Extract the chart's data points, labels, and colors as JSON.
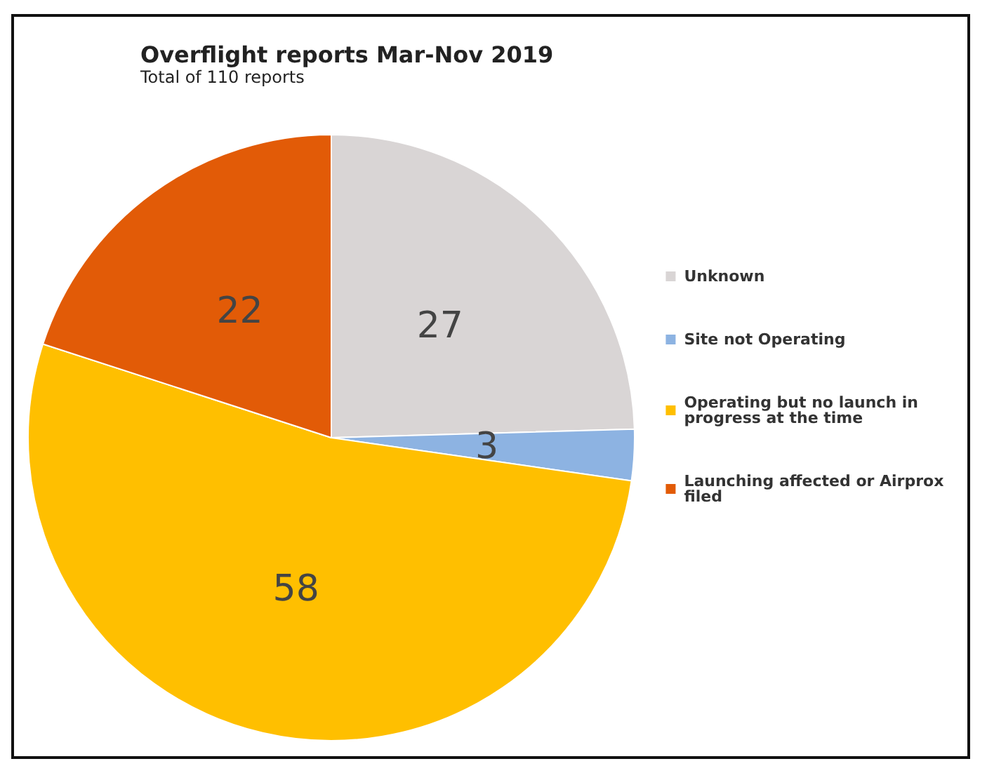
{
  "chart_data": {
    "type": "pie",
    "title": "Overflight reports Mar-Nov 2019",
    "subtitle": "Total of 110 reports",
    "categories": [
      "Unknown",
      "Site not Operating",
      "Operating but no launch in progress at the time",
      "Launching affected or Airprox filed"
    ],
    "values": [
      27,
      3,
      58,
      22
    ],
    "colors": [
      "#d9d5d5",
      "#8db3e2",
      "#ffbf00",
      "#e25b07"
    ],
    "data_labels": true,
    "legend": "right"
  }
}
